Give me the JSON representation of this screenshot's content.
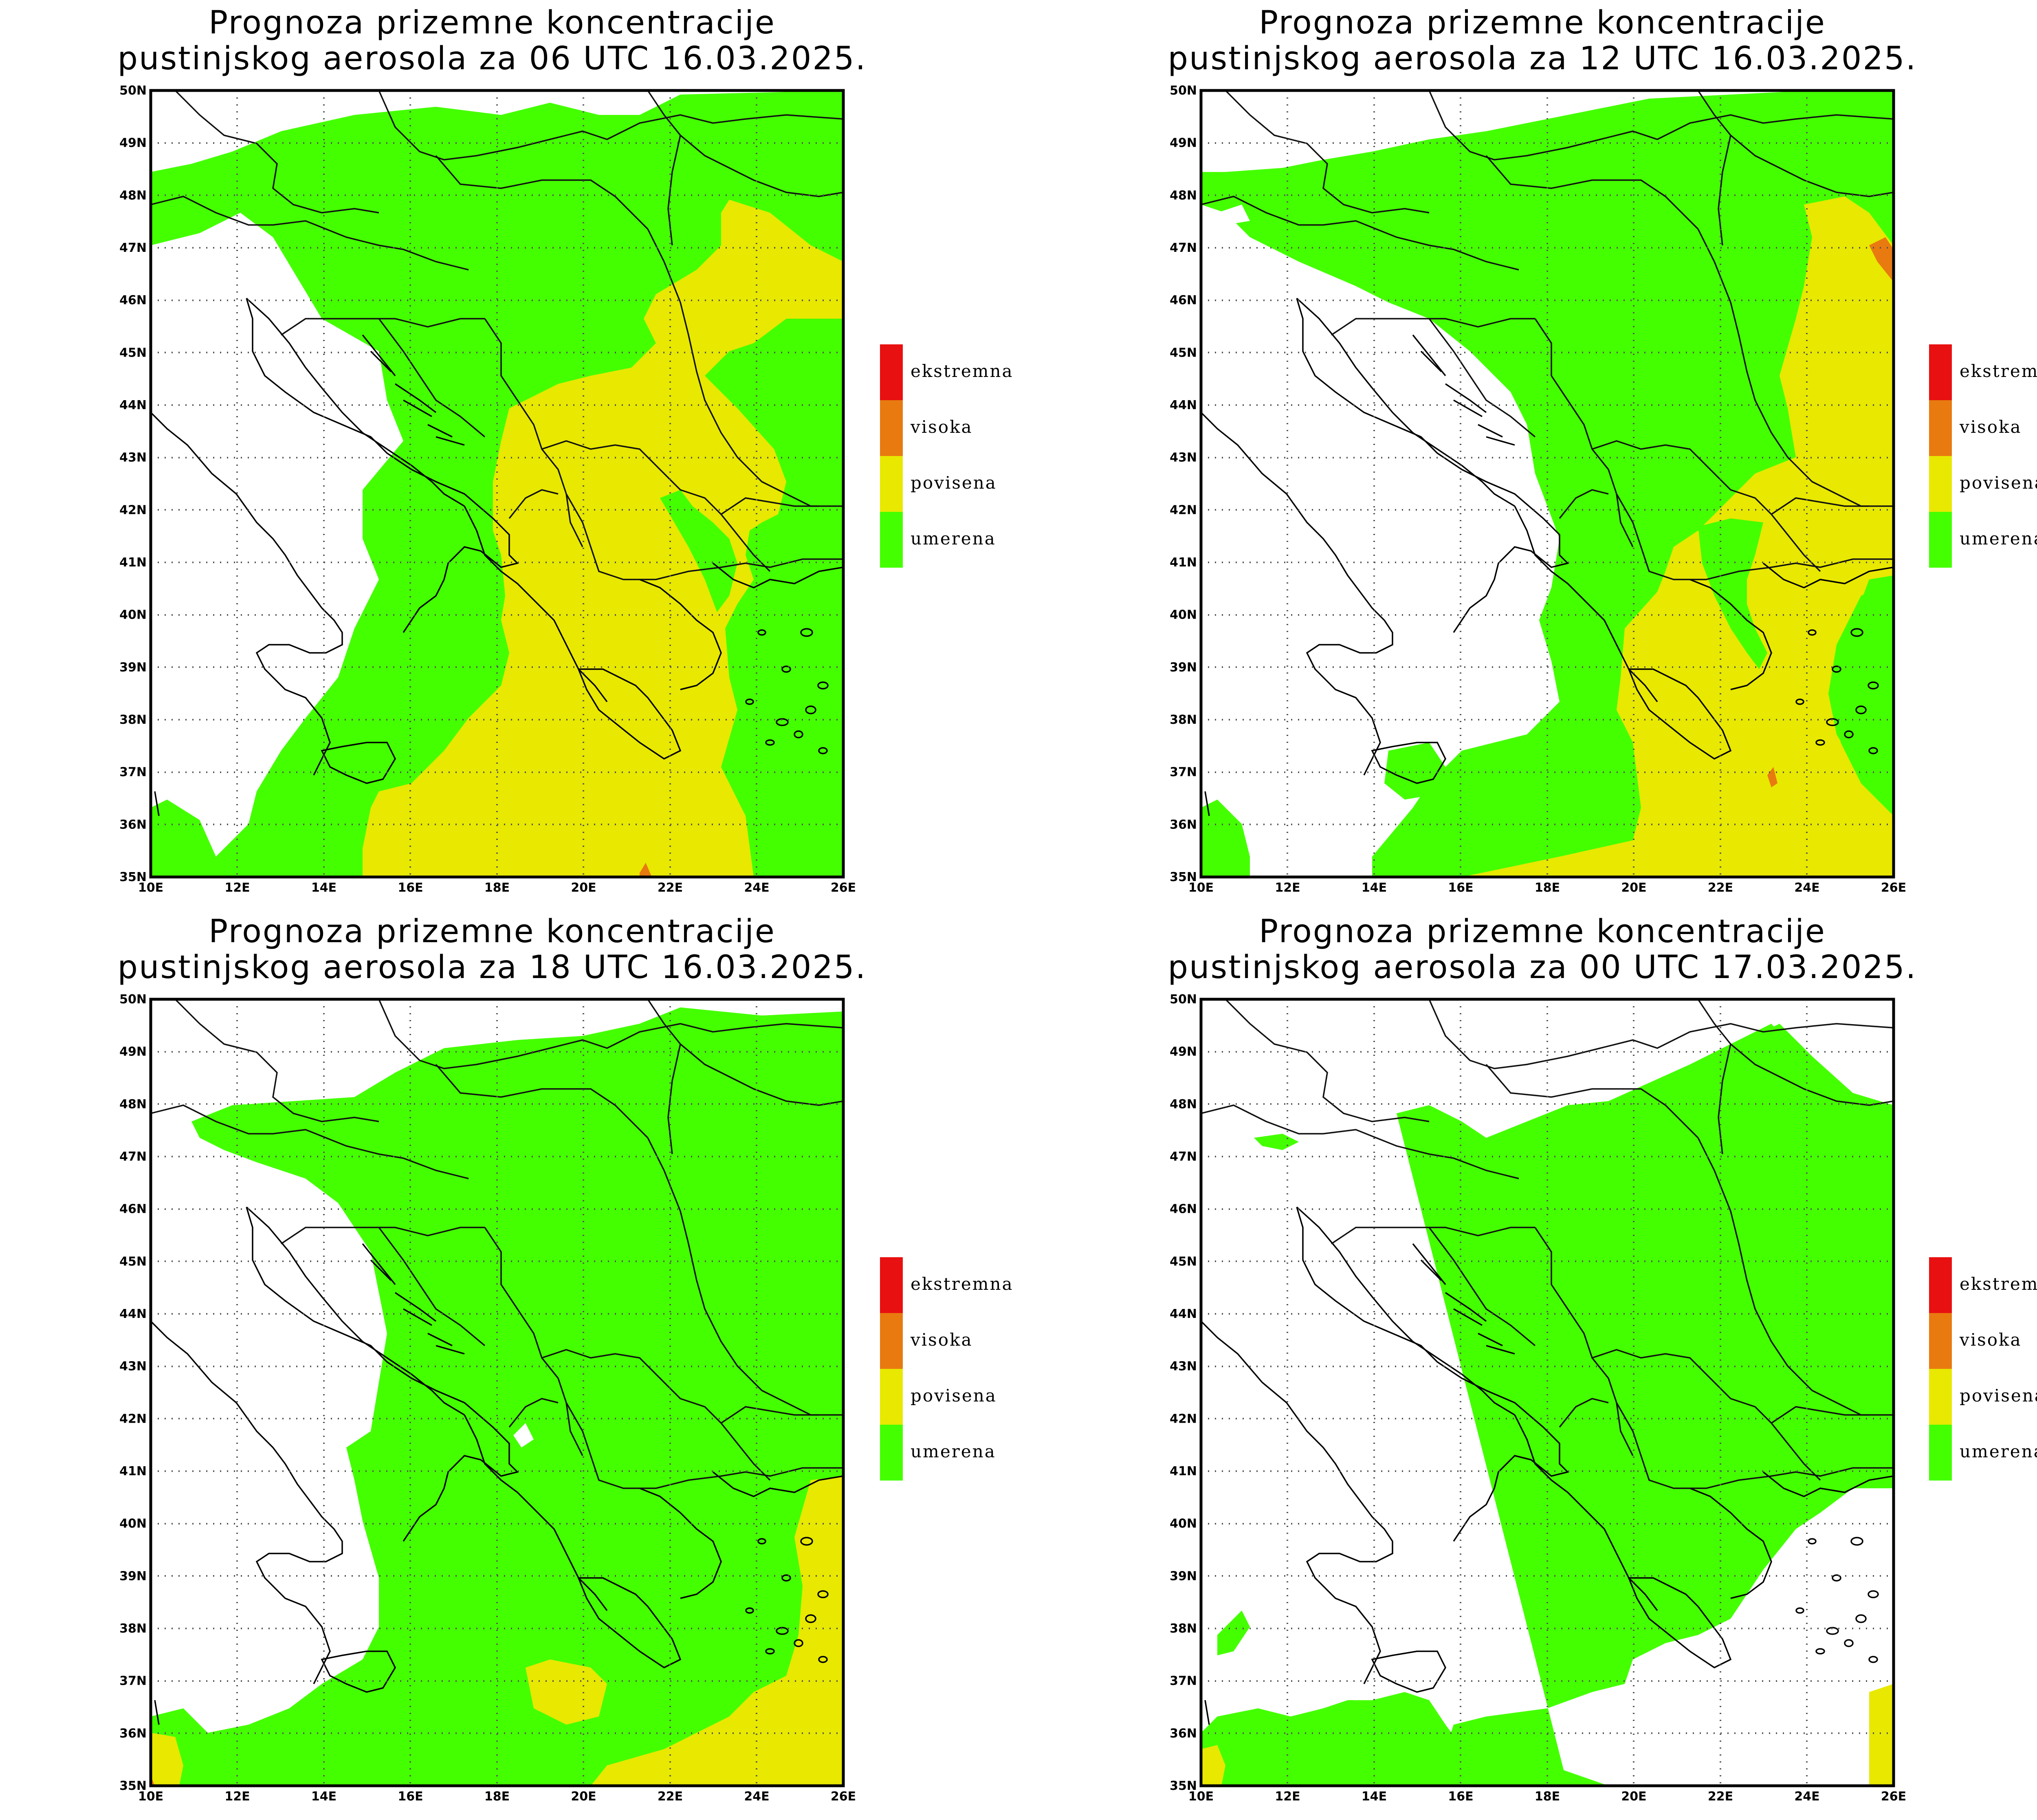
{
  "colors": {
    "umerena": "#44ff00",
    "povisena": "#e8e800",
    "visoka": "#e87a10",
    "ekstremna": "#e81010",
    "background": "#ffffff"
  },
  "legend": {
    "items": [
      {
        "key": "ekstremna",
        "label": "ekstremna",
        "color": "#e81010"
      },
      {
        "key": "visoka",
        "label": "visoka",
        "color": "#e87a10"
      },
      {
        "key": "povisena",
        "label": "povisena",
        "color": "#e8e800"
      },
      {
        "key": "umerena",
        "label": "umerena",
        "color": "#44ff00"
      }
    ]
  },
  "axes": {
    "lon_labels": [
      "10E",
      "12E",
      "14E",
      "16E",
      "18E",
      "20E",
      "22E",
      "24E",
      "26E"
    ],
    "lat_labels": [
      "35N",
      "36N",
      "37N",
      "38N",
      "39N",
      "40N",
      "41N",
      "42N",
      "43N",
      "44N",
      "45N",
      "46N",
      "47N",
      "48N",
      "49N",
      "50N"
    ]
  },
  "panels": [
    {
      "id": "p06",
      "title_line1": "Prognoza prizemne koncentracije",
      "title_line2": "pustinjskog aerosola za 06 UTC 16.03.2025."
    },
    {
      "id": "p12",
      "title_line1": "Prognoza prizemne koncentracije",
      "title_line2": "pustinjskog aerosola za 12 UTC 16.03.2025."
    },
    {
      "id": "p18",
      "title_line1": "Prognoza prizemne koncentracije",
      "title_line2": "pustinjskog aerosola za 18 UTC 16.03.2025."
    },
    {
      "id": "p00",
      "title_line1": "Prognoza prizemne koncentracije",
      "title_line2": "pustinjskog aerosola za 00 UTC 17.03.2025."
    }
  ]
}
